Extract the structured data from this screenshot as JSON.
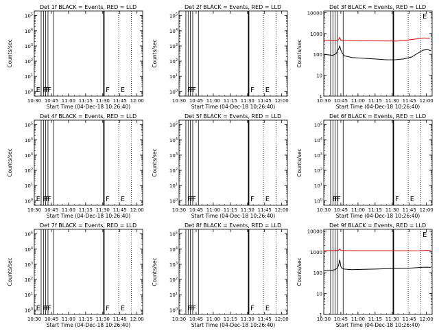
{
  "chart_data": [
    {
      "type": "line",
      "title": "Det 1f BLACK = Events, RED = LLD",
      "xlabel": "Start Time (04-Dec-18 10:26:40)",
      "ylabel": "Counts/sec",
      "xticks": [
        "10:30",
        "10:45",
        "11:00",
        "11:15",
        "11:30",
        "11:45",
        "12:00"
      ],
      "xlim": [
        "10:30",
        "12:05"
      ],
      "yscale": "log",
      "ylim": [
        0.5,
        200000
      ],
      "yticks": [
        {
          "v": 1,
          "label": "10^0"
        },
        {
          "v": 10,
          "label": "10^1"
        },
        {
          "v": 100,
          "label": "10^2"
        },
        {
          "v": 1000,
          "label": "10^3"
        },
        {
          "v": 10000,
          "label": "10^4"
        },
        {
          "v": 100000,
          "label": "10^5"
        }
      ],
      "has_data": false,
      "vlines_solid": [
        "10:36",
        "10:38",
        "10:40",
        "10:42",
        "10:47"
      ],
      "vlines_thick": [
        "11:31"
      ],
      "vlines_dotted": [
        "11:44",
        "11:55"
      ],
      "flags": [
        {
          "t": "10:31",
          "text": "E"
        },
        {
          "t": "10:37",
          "text": "F"
        },
        {
          "t": "10:39",
          "text": "F"
        },
        {
          "t": "10:41",
          "text": "F"
        },
        {
          "t": "11:32",
          "text": "F"
        },
        {
          "t": "11:45",
          "text": "E"
        }
      ]
    },
    {
      "type": "line",
      "title": "Det 2f BLACK = Events, RED = LLD",
      "xlabel": "Start Time (04-Dec-18 10:26:40)",
      "ylabel": "Counts/sec",
      "xticks": [
        "10:30",
        "10:45",
        "11:00",
        "11:15",
        "11:30",
        "11:45",
        "12:00"
      ],
      "xlim": [
        "10:30",
        "12:05"
      ],
      "yscale": "log",
      "ylim": [
        0.5,
        200000
      ],
      "yticks": [
        {
          "v": 1,
          "label": "10^0"
        },
        {
          "v": 10,
          "label": "10^1"
        },
        {
          "v": 100,
          "label": "10^2"
        },
        {
          "v": 1000,
          "label": "10^3"
        },
        {
          "v": 10000,
          "label": "10^4"
        },
        {
          "v": 100000,
          "label": "10^5"
        }
      ],
      "has_data": false,
      "vlines_solid": [
        "10:36",
        "10:38",
        "10:40",
        "10:42",
        "10:47"
      ],
      "vlines_thick": [
        "11:31"
      ],
      "vlines_dotted": [
        "11:44",
        "11:55"
      ],
      "flags": [
        {
          "t": "10:37",
          "text": "F"
        },
        {
          "t": "10:39",
          "text": "F"
        },
        {
          "t": "10:41",
          "text": "F"
        },
        {
          "t": "11:32",
          "text": "F"
        },
        {
          "t": "11:45",
          "text": "E"
        }
      ]
    },
    {
      "type": "line",
      "title": "Det 3f BLACK = Events, RED = LLD",
      "xlabel": "Start Time (04-Dec-18 10:26:40)",
      "ylabel": "Counts/sec",
      "xticks": [
        "10:30",
        "10:45",
        "11:00",
        "11:15",
        "11:30",
        "11:45",
        "12:00"
      ],
      "xlim": [
        "10:30",
        "12:05"
      ],
      "yscale": "log",
      "ylim": [
        1,
        12000
      ],
      "yticks": [
        {
          "v": 1,
          "label": "1"
        },
        {
          "v": 10,
          "label": "10"
        },
        {
          "v": 100,
          "label": "100"
        },
        {
          "v": 1000,
          "label": "1000"
        },
        {
          "v": 10000,
          "label": "10000"
        }
      ],
      "has_data": true,
      "vlines_solid": [
        "10:36",
        "10:38",
        "10:40",
        "10:42",
        "10:47"
      ],
      "vlines_thick": [
        "11:31"
      ],
      "vlines_dotted": [
        "11:44",
        "11:55"
      ],
      "flags": [
        {
          "t": "11:56",
          "text": "E"
        }
      ],
      "series": [
        {
          "name": "LLD",
          "color": "#d40000",
          "x": [
            "10:30",
            "10:40",
            "10:43",
            "10:44",
            "10:45",
            "10:47",
            "10:55",
            "11:10",
            "11:25",
            "11:35",
            "11:45",
            "11:52",
            "11:58",
            "12:03"
          ],
          "y": [
            470,
            460,
            500,
            650,
            470,
            460,
            450,
            445,
            440,
            435,
            500,
            560,
            610,
            580
          ]
        },
        {
          "name": "Events",
          "color": "#000000",
          "x": [
            "10:30",
            "10:34",
            "10:38",
            "10:41",
            "10:42",
            "10:43",
            "10:44",
            "10:45",
            "10:46",
            "10:48",
            "10:55",
            "11:05",
            "11:15",
            "11:25",
            "11:32",
            "11:40",
            "11:47",
            "11:52",
            "11:57",
            "12:01",
            "12:04"
          ],
          "y": [
            100,
            95,
            90,
            110,
            150,
            180,
            250,
            160,
            120,
            85,
            70,
            65,
            60,
            55,
            55,
            60,
            75,
            110,
            160,
            170,
            150
          ]
        }
      ]
    },
    {
      "type": "line",
      "title": "Det 4f BLACK = Events, RED = LLD",
      "xlabel": "Start Time (04-Dec-18 10:26:40)",
      "ylabel": "Counts/sec",
      "xticks": [
        "10:30",
        "10:45",
        "11:00",
        "11:15",
        "11:30",
        "11:45",
        "12:00"
      ],
      "xlim": [
        "10:30",
        "12:05"
      ],
      "yscale": "log",
      "ylim": [
        0.5,
        200000
      ],
      "yticks": [
        {
          "v": 1,
          "label": "10^0"
        },
        {
          "v": 10,
          "label": "10^1"
        },
        {
          "v": 100,
          "label": "10^2"
        },
        {
          "v": 1000,
          "label": "10^3"
        },
        {
          "v": 10000,
          "label": "10^4"
        },
        {
          "v": 100000,
          "label": "10^5"
        }
      ],
      "has_data": false,
      "vlines_solid": [
        "10:36",
        "10:38",
        "10:40",
        "10:42",
        "10:47"
      ],
      "vlines_thick": [
        "11:31"
      ],
      "vlines_dotted": [
        "11:44",
        "11:55"
      ],
      "flags": [
        {
          "t": "10:31",
          "text": "E"
        },
        {
          "t": "10:37",
          "text": "F"
        },
        {
          "t": "10:39",
          "text": "F"
        },
        {
          "t": "10:41",
          "text": "F"
        },
        {
          "t": "11:32",
          "text": "F"
        },
        {
          "t": "11:45",
          "text": "E"
        }
      ]
    },
    {
      "type": "line",
      "title": "Det 5f BLACK = Events, RED = LLD",
      "xlabel": "Start Time (04-Dec-18 10:26:40)",
      "ylabel": "Counts/sec",
      "xticks": [
        "10:30",
        "10:45",
        "11:00",
        "11:15",
        "11:30",
        "11:45",
        "12:00"
      ],
      "xlim": [
        "10:30",
        "12:05"
      ],
      "yscale": "log",
      "ylim": [
        0.5,
        200000
      ],
      "yticks": [
        {
          "v": 1,
          "label": "10^0"
        },
        {
          "v": 10,
          "label": "10^1"
        },
        {
          "v": 100,
          "label": "10^2"
        },
        {
          "v": 1000,
          "label": "10^3"
        },
        {
          "v": 10000,
          "label": "10^4"
        },
        {
          "v": 100000,
          "label": "10^5"
        }
      ],
      "has_data": false,
      "vlines_solid": [
        "10:36",
        "10:38",
        "10:40",
        "10:42",
        "10:47"
      ],
      "vlines_thick": [
        "11:31"
      ],
      "vlines_dotted": [
        "11:44",
        "11:55"
      ],
      "flags": [
        {
          "t": "10:37",
          "text": "F"
        },
        {
          "t": "10:39",
          "text": "F"
        },
        {
          "t": "10:41",
          "text": "F"
        },
        {
          "t": "11:32",
          "text": "F"
        },
        {
          "t": "11:45",
          "text": "E"
        }
      ]
    },
    {
      "type": "line",
      "title": "Det 6f BLACK = Events, RED = LLD",
      "xlabel": "Start Time (04-Dec-18 10:26:40)",
      "ylabel": "Counts/sec",
      "xticks": [
        "10:30",
        "10:45",
        "11:00",
        "11:15",
        "11:30",
        "11:45",
        "12:00"
      ],
      "xlim": [
        "10:30",
        "12:05"
      ],
      "yscale": "log",
      "ylim": [
        0.5,
        200000
      ],
      "yticks": [
        {
          "v": 1,
          "label": "10^0"
        },
        {
          "v": 10,
          "label": "10^1"
        },
        {
          "v": 100,
          "label": "10^2"
        },
        {
          "v": 1000,
          "label": "10^3"
        },
        {
          "v": 10000,
          "label": "10^4"
        },
        {
          "v": 100000,
          "label": "10^5"
        }
      ],
      "has_data": false,
      "vlines_solid": [
        "10:36",
        "10:38",
        "10:40",
        "10:42",
        "10:47"
      ],
      "vlines_thick": [
        "11:31"
      ],
      "vlines_dotted": [
        "11:44",
        "11:55"
      ],
      "flags": [
        {
          "t": "10:37",
          "text": "F"
        },
        {
          "t": "10:39",
          "text": "F"
        },
        {
          "t": "10:41",
          "text": "F"
        },
        {
          "t": "11:32",
          "text": "F"
        },
        {
          "t": "11:45",
          "text": "E"
        }
      ]
    },
    {
      "type": "line",
      "title": "Det 7f BLACK = Events, RED = LLD",
      "xlabel": "Start Time (04-Dec-18 10:26:40)",
      "ylabel": "Counts/sec",
      "xticks": [
        "10:30",
        "10:45",
        "11:00",
        "11:15",
        "11:30",
        "11:45",
        "12:00"
      ],
      "xlim": [
        "10:30",
        "12:05"
      ],
      "yscale": "log",
      "ylim": [
        0.5,
        200000
      ],
      "yticks": [
        {
          "v": 1,
          "label": "10^0"
        },
        {
          "v": 10,
          "label": "10^1"
        },
        {
          "v": 100,
          "label": "10^2"
        },
        {
          "v": 1000,
          "label": "10^3"
        },
        {
          "v": 10000,
          "label": "10^4"
        },
        {
          "v": 100000,
          "label": "10^5"
        }
      ],
      "has_data": false,
      "vlines_solid": [
        "10:36",
        "10:38",
        "10:40",
        "10:42",
        "10:47"
      ],
      "vlines_thick": [
        "11:31"
      ],
      "vlines_dotted": [
        "11:44",
        "11:55"
      ],
      "flags": [
        {
          "t": "10:31",
          "text": "E"
        },
        {
          "t": "10:37",
          "text": "F"
        },
        {
          "t": "10:39",
          "text": "F"
        },
        {
          "t": "10:41",
          "text": "F"
        },
        {
          "t": "11:32",
          "text": "F"
        },
        {
          "t": "11:45",
          "text": "E"
        }
      ]
    },
    {
      "type": "line",
      "title": "Det 8f BLACK = Events, RED = LLD",
      "xlabel": "Start Time (04-Dec-18 10:26:40)",
      "ylabel": "Counts/sec",
      "xticks": [
        "10:30",
        "10:45",
        "11:00",
        "11:15",
        "11:30",
        "11:45",
        "12:00"
      ],
      "xlim": [
        "10:30",
        "12:05"
      ],
      "yscale": "log",
      "ylim": [
        0.5,
        200000
      ],
      "yticks": [
        {
          "v": 1,
          "label": "10^0"
        },
        {
          "v": 10,
          "label": "10^1"
        },
        {
          "v": 100,
          "label": "10^2"
        },
        {
          "v": 1000,
          "label": "10^3"
        },
        {
          "v": 10000,
          "label": "10^4"
        },
        {
          "v": 100000,
          "label": "10^5"
        }
      ],
      "has_data": false,
      "vlines_solid": [
        "10:36",
        "10:38",
        "10:40",
        "10:42",
        "10:47"
      ],
      "vlines_thick": [
        "11:31"
      ],
      "vlines_dotted": [
        "11:44",
        "11:55"
      ],
      "flags": [
        {
          "t": "10:37",
          "text": "F"
        },
        {
          "t": "10:39",
          "text": "F"
        },
        {
          "t": "10:41",
          "text": "F"
        },
        {
          "t": "11:32",
          "text": "F"
        },
        {
          "t": "11:45",
          "text": "E"
        }
      ]
    },
    {
      "type": "line",
      "title": "Det 9f BLACK = Events, RED = LLD",
      "xlabel": "Start Time (04-Dec-18 10:26:40)",
      "ylabel": "Counts/sec",
      "xticks": [
        "10:30",
        "10:45",
        "11:00",
        "11:15",
        "11:30",
        "11:45",
        "12:00"
      ],
      "xlim": [
        "10:30",
        "12:05"
      ],
      "yscale": "log",
      "ylim": [
        1,
        12000
      ],
      "yticks": [
        {
          "v": 1,
          "label": "1"
        },
        {
          "v": 10,
          "label": "10"
        },
        {
          "v": 100,
          "label": "100"
        },
        {
          "v": 1000,
          "label": "1000"
        },
        {
          "v": 10000,
          "label": "10000"
        }
      ],
      "has_data": true,
      "vlines_solid": [
        "10:36",
        "10:38",
        "10:40",
        "10:42",
        "10:47"
      ],
      "vlines_thick": [
        "11:31"
      ],
      "vlines_dotted": [
        "11:44",
        "11:55"
      ],
      "flags": [
        {
          "t": "11:56",
          "text": "E"
        }
      ],
      "series": [
        {
          "name": "LLD",
          "color": "#d40000",
          "x": [
            "10:30",
            "10:40",
            "10:43",
            "10:44",
            "10:45",
            "10:50",
            "11:00",
            "11:15",
            "11:30",
            "11:45",
            "11:55",
            "12:00",
            "12:04"
          ],
          "y": [
            1150,
            1150,
            1200,
            1350,
            1180,
            1150,
            1140,
            1140,
            1140,
            1130,
            1140,
            1200,
            1150
          ]
        },
        {
          "name": "Events",
          "color": "#000000",
          "x": [
            "10:30",
            "10:35",
            "10:40",
            "10:42",
            "10:43",
            "10:44",
            "10:45",
            "10:46",
            "10:48",
            "10:55",
            "11:05",
            "11:15",
            "11:25",
            "11:35",
            "11:45",
            "11:55",
            "12:00",
            "12:04"
          ],
          "y": [
            130,
            125,
            140,
            170,
            230,
            420,
            200,
            160,
            150,
            140,
            145,
            150,
            155,
            160,
            165,
            180,
            185,
            180
          ]
        }
      ]
    }
  ]
}
